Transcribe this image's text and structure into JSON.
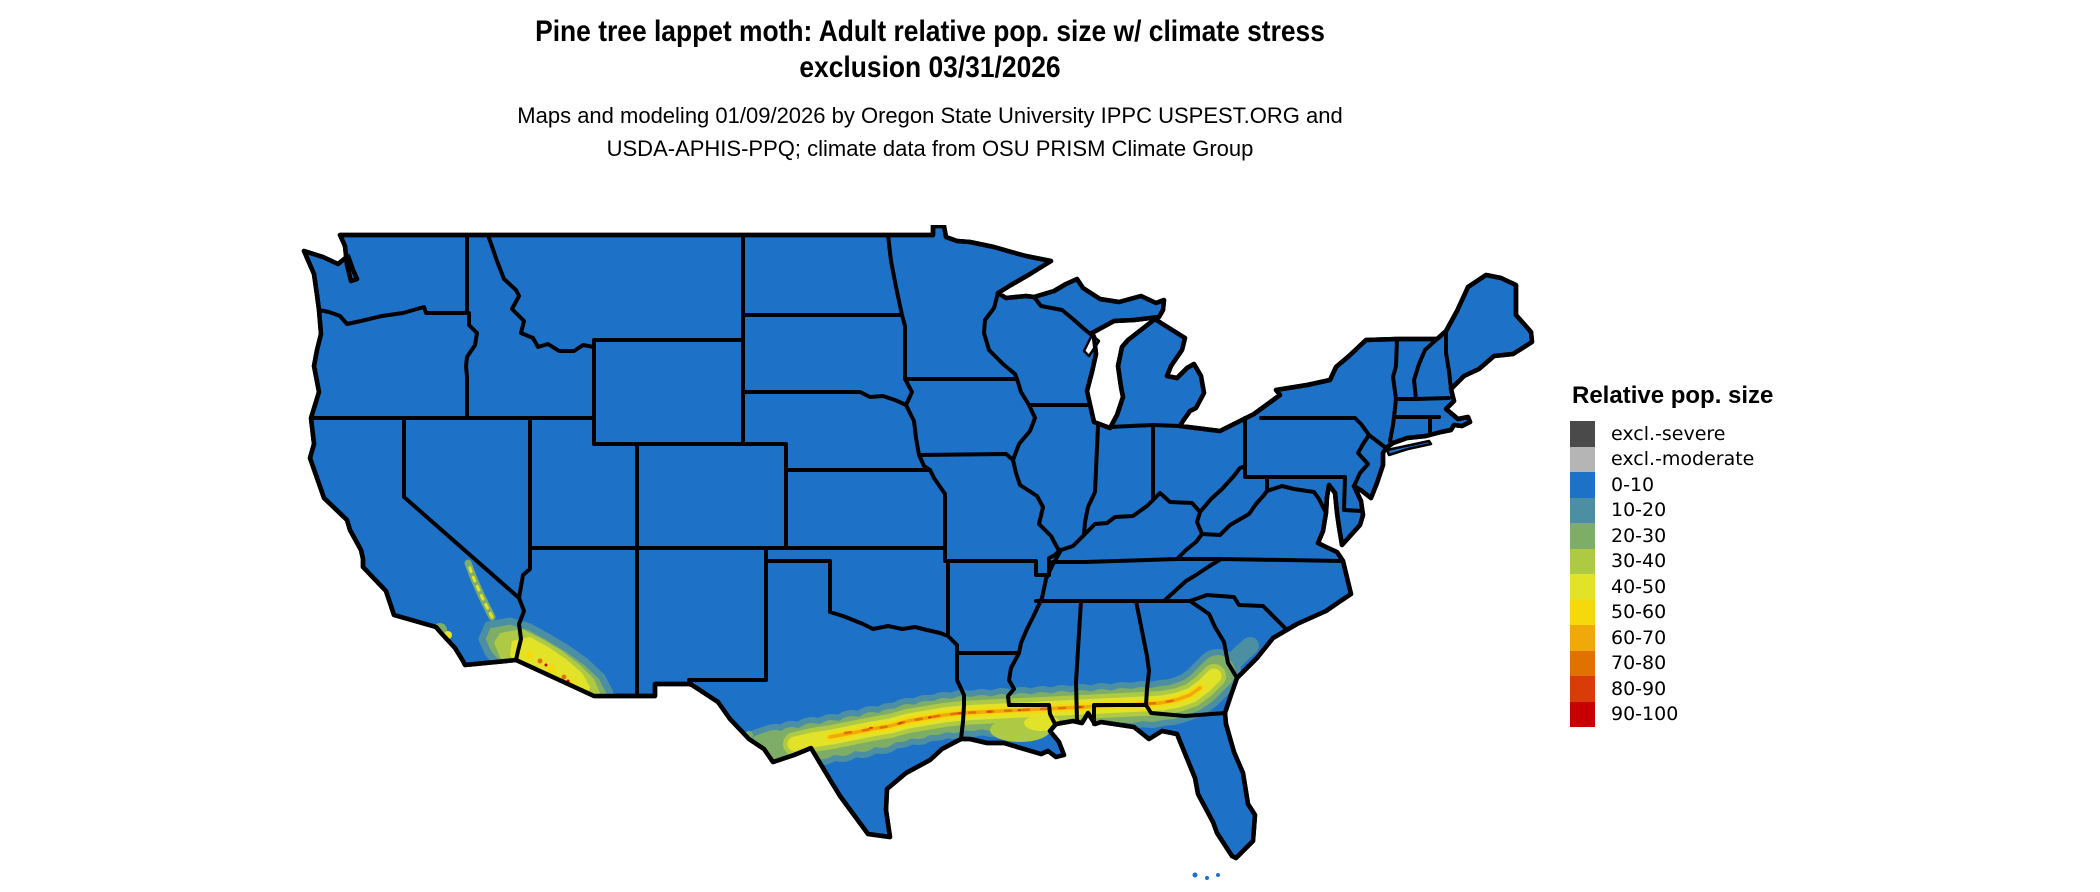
{
  "title": {
    "line1": "Pine tree lappet moth: Adult relative pop. size w/ climate stress",
    "line2": "exclusion 03/31/2026"
  },
  "subtitle": {
    "line1": "Maps and modeling 01/09/2026 by Oregon State University IPPC USPEST.ORG and",
    "line2": "USDA-APHIS-PPQ; climate data from OSU PRISM Climate Group"
  },
  "legend": {
    "title": "Relative pop. size",
    "items": [
      {
        "label": "excl.-severe",
        "color": "#4A4A4A"
      },
      {
        "label": "excl.-moderate",
        "color": "#B5B5B5"
      },
      {
        "label": "0-10",
        "color": "#1D72C8"
      },
      {
        "label": "10-20",
        "color": "#4C8FA3"
      },
      {
        "label": "20-30",
        "color": "#7DAD67"
      },
      {
        "label": "30-40",
        "color": "#AECA44"
      },
      {
        "label": "40-50",
        "color": "#E2E328"
      },
      {
        "label": "50-60",
        "color": "#F6D90C"
      },
      {
        "label": "60-70",
        "color": "#EFA90A"
      },
      {
        "label": "70-80",
        "color": "#E17200"
      },
      {
        "label": "80-90",
        "color": "#D83C08"
      },
      {
        "label": "90-100",
        "color": "#C80000"
      }
    ]
  },
  "map_data": {
    "type": "choropleth-raster",
    "region": "contiguous United States with state borders",
    "dominant_class": "0-10",
    "elevated_population_areas": [
      {
        "area": "southern California coast and southern Arizona",
        "classes": "20-60 with scattered 60-90 specks"
      },
      {
        "area": "Gulf Coast band from west Texas through Louisiana, Mississippi, Alabama, southern Georgia and the Florida panhandle",
        "classes": "10-60 banded, with a narrow 60-90 core line"
      },
      {
        "area": "southeastern Atlantic coastal fringe into South Carolina",
        "classes": "10-30"
      }
    ],
    "excluded_areas_visible": "none (no gray exclusion pixels visible on map)"
  }
}
